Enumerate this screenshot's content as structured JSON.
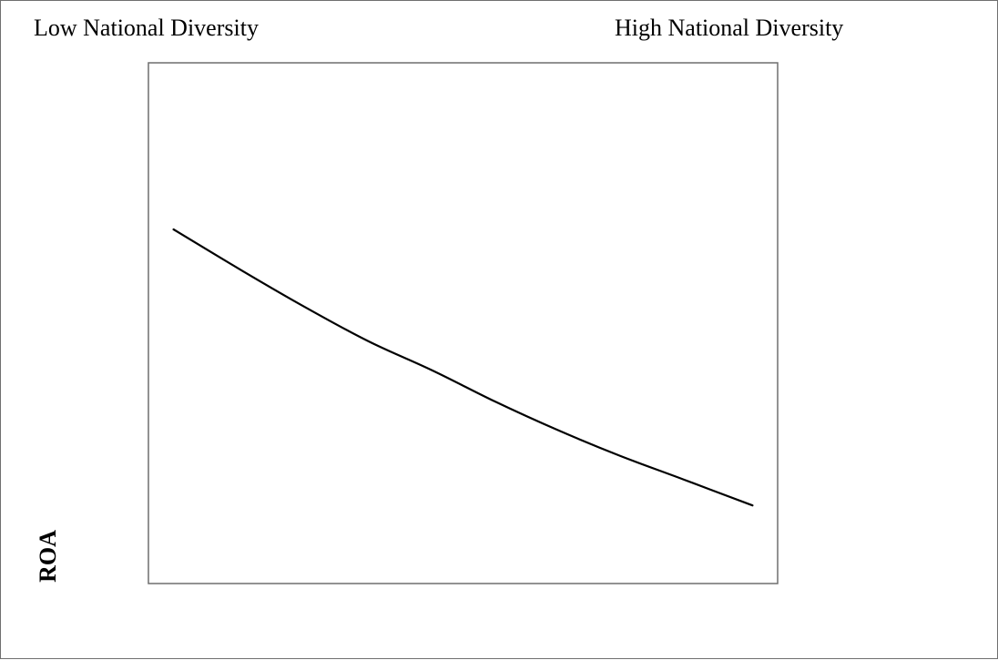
{
  "labels": {
    "left": "Low National Diversity",
    "right": "High National Diversity"
  },
  "chart_data": {
    "type": "line",
    "title": "",
    "xlabel": "",
    "ylabel": "ROA",
    "xlim": [
      0,
      1
    ],
    "ylim": [
      0,
      1
    ],
    "grid": false,
    "legend": "none",
    "series": [
      {
        "color": "#000000",
        "x": [
          0.04,
          0.15,
          0.25,
          0.35,
          0.45,
          0.55,
          0.65,
          0.75,
          0.85,
          0.96
        ],
        "y": [
          0.68,
          0.6,
          0.53,
          0.465,
          0.41,
          0.35,
          0.295,
          0.245,
          0.2,
          0.15
        ]
      }
    ]
  }
}
